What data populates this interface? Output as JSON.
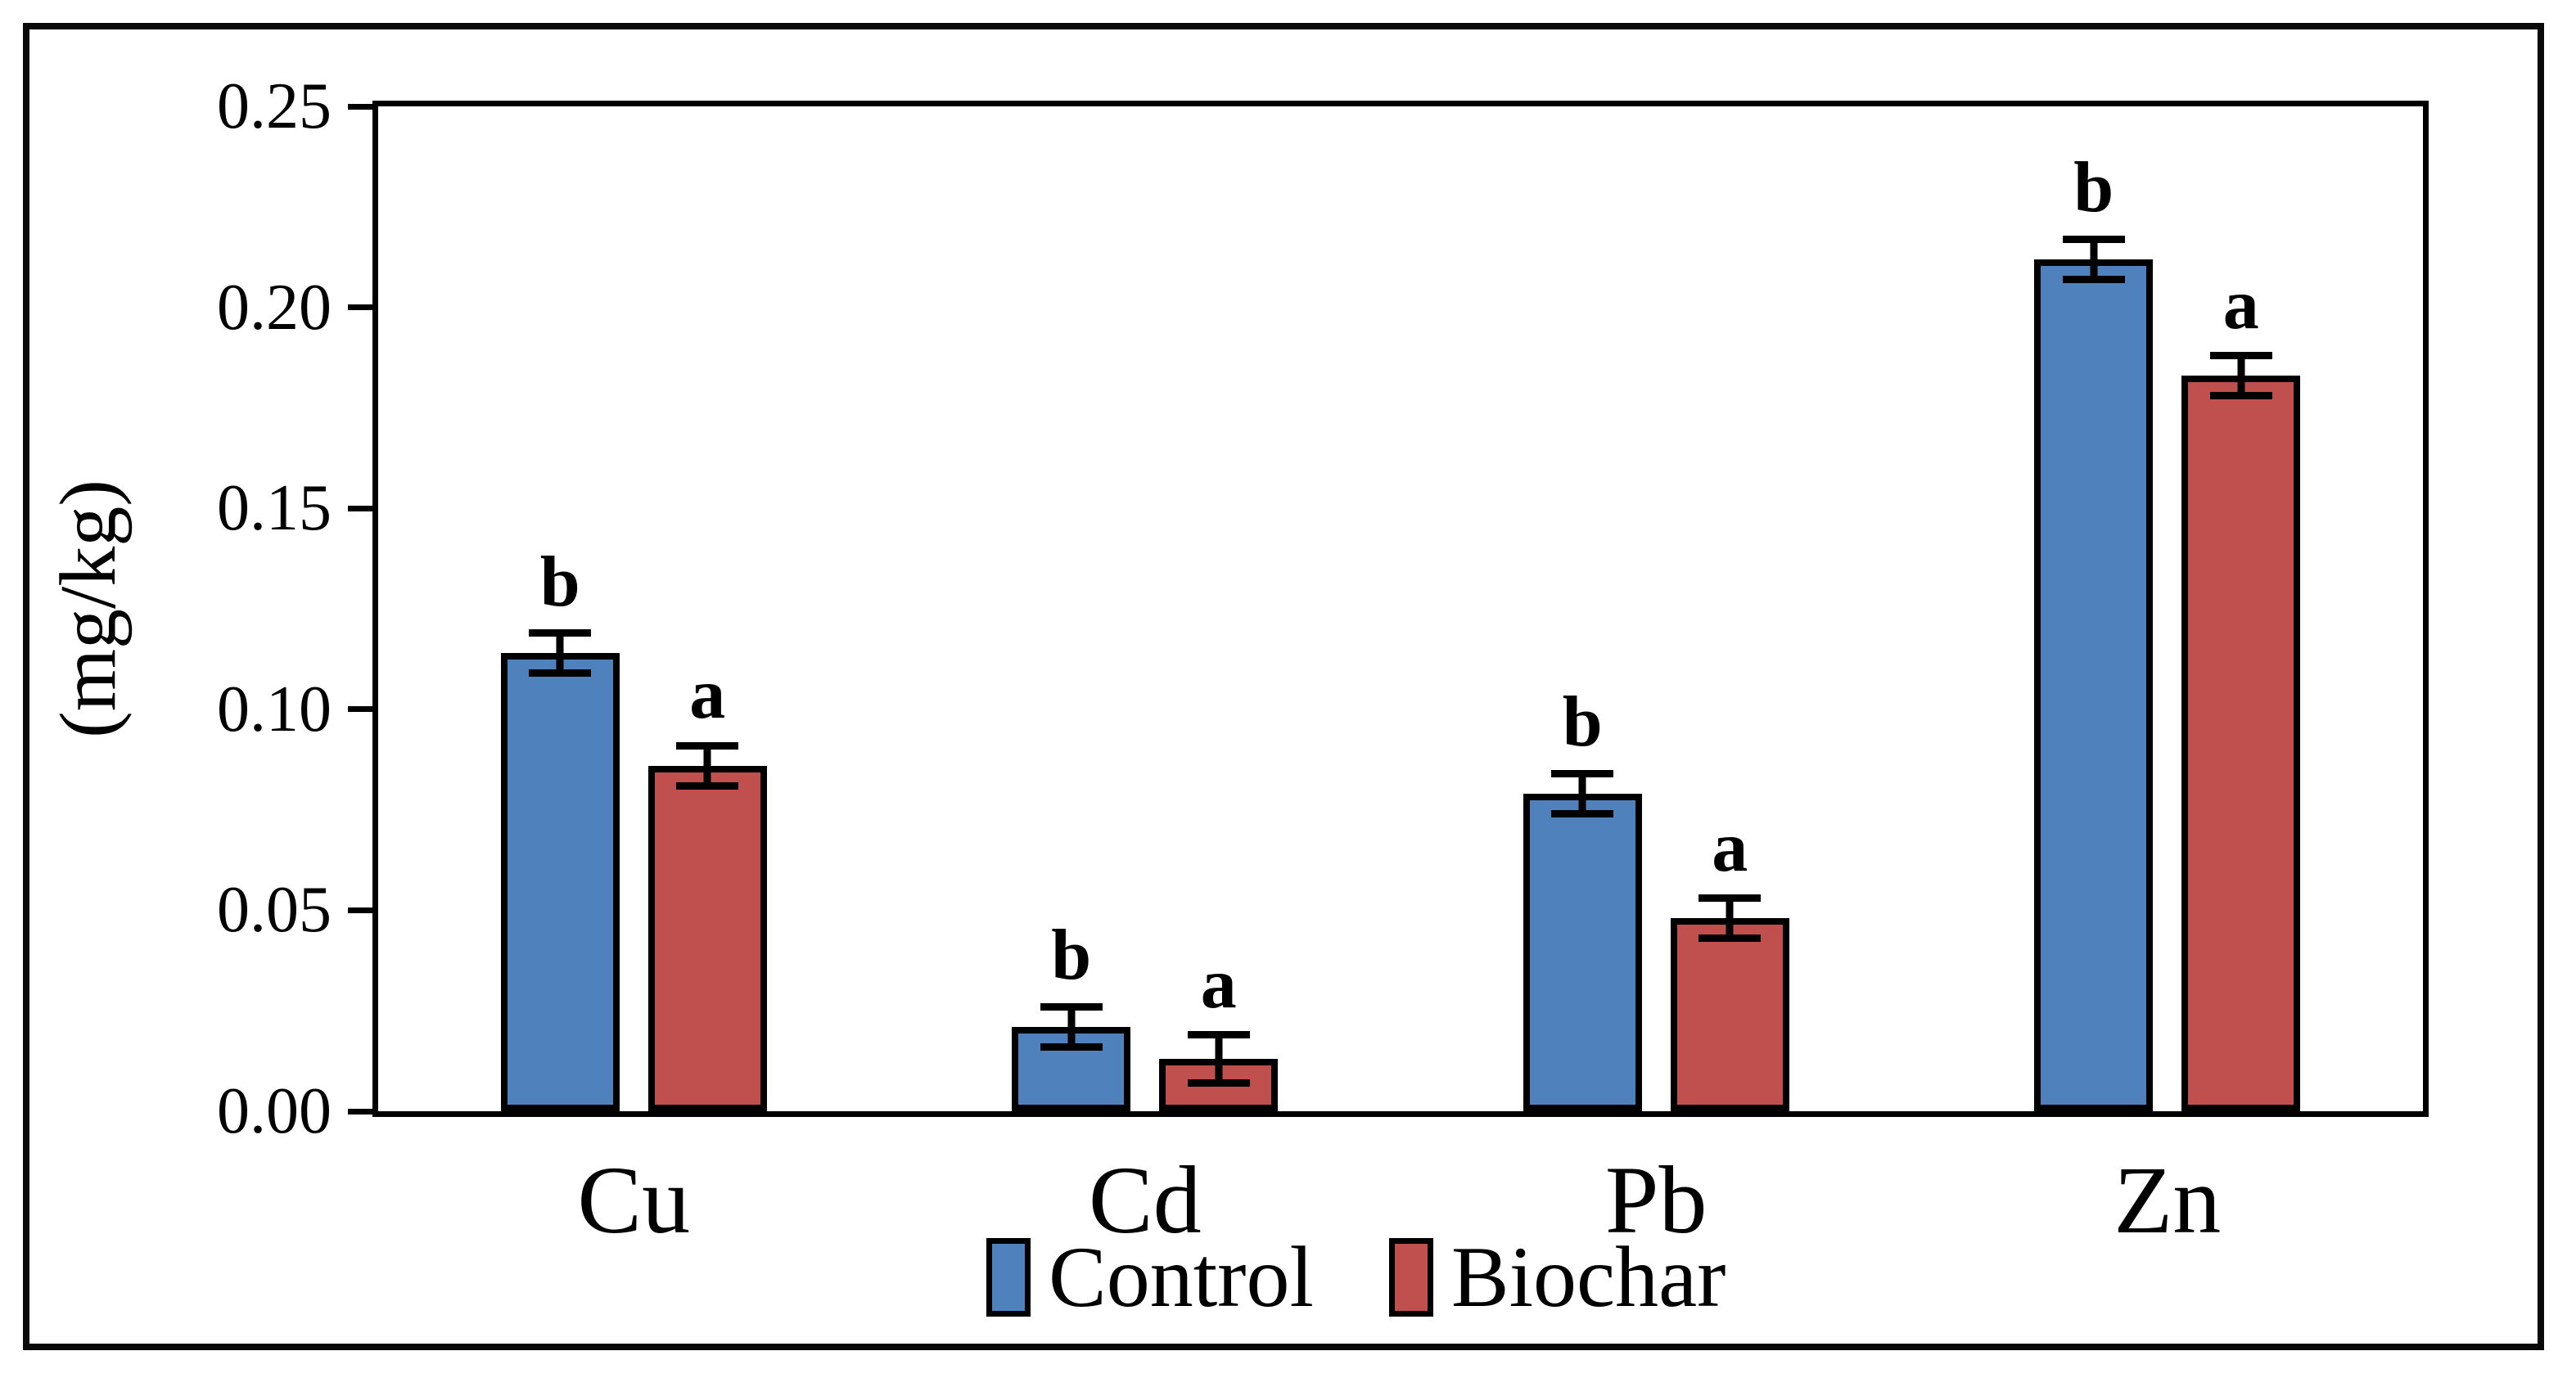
{
  "figure": {
    "title": "",
    "background": "#ffffff",
    "frame_color": "#000000"
  },
  "y_axis": {
    "label": "(mg/kg)",
    "tick_labels": [
      "0.00",
      "0.05",
      "0.10",
      "0.15",
      "0.20",
      "0.25"
    ]
  },
  "legend": {
    "items": [
      {
        "label": "Control",
        "color": "#4F81BD"
      },
      {
        "label": "Biochar",
        "color": "#C0504D"
      }
    ]
  },
  "chart_data": {
    "type": "bar",
    "title": "",
    "xlabel": "",
    "ylabel": "(mg/kg)",
    "categories": [
      "Cu",
      "Cd",
      "Pb",
      "Zn"
    ],
    "series": [
      {
        "name": "Control",
        "color": "#4F81BD",
        "values": [
          0.114,
          0.021,
          0.079,
          0.212
        ],
        "errors": [
          0.005,
          0.005,
          0.005,
          0.005
        ],
        "sig_letters": [
          "b",
          "b",
          "b",
          "b"
        ]
      },
      {
        "name": "Biochar",
        "color": "#C0504D",
        "values": [
          0.086,
          0.013,
          0.048,
          0.183
        ],
        "errors": [
          0.005,
          0.006,
          0.005,
          0.005
        ],
        "sig_letters": [
          "a",
          "a",
          "a",
          "a"
        ]
      }
    ],
    "ylim": [
      0,
      0.25
    ],
    "ytick_step": 0.05,
    "ytick_labels": [
      "0.00",
      "0.05",
      "0.10",
      "0.15",
      "0.20",
      "0.25"
    ],
    "grid": false,
    "legend_position": "bottom-center",
    "bar_outline_color": "#000000",
    "error_bar_color": "#000000"
  }
}
